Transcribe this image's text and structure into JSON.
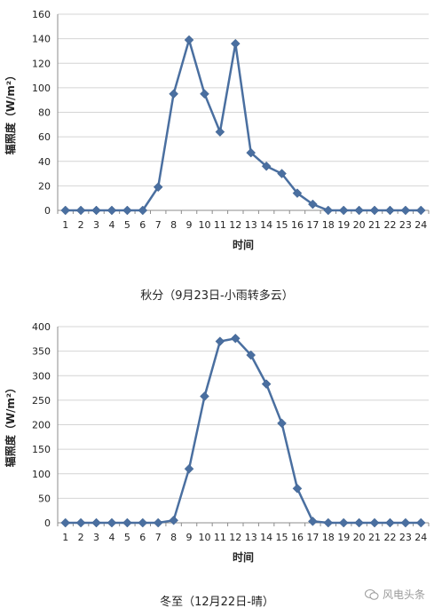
{
  "chart_data": [
    {
      "type": "line",
      "title": "",
      "xlabel": "时间",
      "ylabel": "辐照度（W/m²）",
      "categories": [
        "1",
        "2",
        "3",
        "4",
        "5",
        "6",
        "7",
        "8",
        "9",
        "10",
        "11",
        "12",
        "13",
        "14",
        "15",
        "16",
        "17",
        "18",
        "19",
        "20",
        "21",
        "22",
        "23",
        "24"
      ],
      "series": [
        {
          "values": [
            0,
            0,
            0,
            0,
            0,
            0,
            19,
            95,
            139,
            95,
            64,
            136,
            47,
            36,
            30,
            14,
            5,
            0,
            0,
            0,
            0,
            0,
            0,
            0
          ]
        }
      ],
      "ylim": [
        0,
        160
      ],
      "yticks": [
        0,
        20,
        40,
        60,
        80,
        100,
        120,
        140,
        160
      ],
      "grid": true,
      "caption": "秋分（9月23日-小雨转多云）",
      "color": "#4a6fa0"
    },
    {
      "type": "line",
      "title": "",
      "xlabel": "时间",
      "ylabel": "辐照度（W/m²）",
      "categories": [
        "1",
        "2",
        "3",
        "4",
        "5",
        "6",
        "7",
        "8",
        "9",
        "10",
        "11",
        "12",
        "13",
        "14",
        "15",
        "16",
        "17",
        "18",
        "19",
        "20",
        "21",
        "22",
        "23",
        "24"
      ],
      "series": [
        {
          "values": [
            0,
            0,
            0,
            0,
            0,
            0,
            0,
            5,
            110,
            258,
            370,
            376,
            342,
            283,
            203,
            70,
            3,
            0,
            0,
            0,
            0,
            0,
            0,
            0
          ]
        }
      ],
      "ylim": [
        0,
        400
      ],
      "yticks": [
        0,
        50,
        100,
        150,
        200,
        250,
        300,
        350,
        400
      ],
      "grid": true,
      "caption": "冬至（12月22日-晴）",
      "color": "#4a6fa0"
    }
  ],
  "watermark": {
    "text": "风电头条",
    "icon": "wechat-icon"
  }
}
